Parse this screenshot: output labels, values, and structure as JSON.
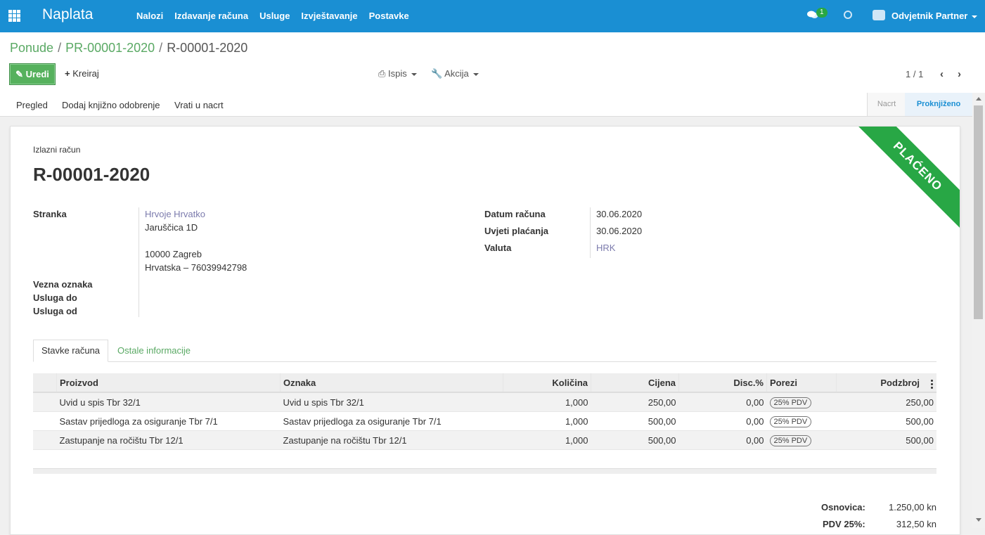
{
  "topbar": {
    "brand": "Naplata",
    "menu": [
      "Nalozi",
      "Izdavanje računa",
      "Usluge",
      "Izvještavanje",
      "Postavke"
    ],
    "chat_badge": "1",
    "user_name": "Odvjetnik Partner",
    "icons": {
      "apps": "apps-grid-icon",
      "chat": "chat-icon",
      "activity": "clock-icon",
      "company": "company-camera-icon"
    },
    "color": "#1a8fd3"
  },
  "breadcrumb": {
    "items": [
      "Ponude",
      "PR-00001-2020"
    ],
    "current": "R-00001-2020"
  },
  "buttons": {
    "edit": "Uredi",
    "create": "Kreiraj",
    "print": "Ispis",
    "action": "Akcija"
  },
  "pager": {
    "value": "1 / 1"
  },
  "statusbar": {
    "actions": [
      "Pregled",
      "Dodaj knjižno odobrenje",
      "Vrati u nacrt"
    ],
    "stages": [
      "Nacrt",
      "Proknjiženo"
    ],
    "active_stage": "Proknjiženo"
  },
  "ribbon": {
    "label": "PLAĆENO",
    "color": "#28a745"
  },
  "document": {
    "type": "Izlazni račun",
    "name": "R-00001-2020"
  },
  "left_fields": {
    "partner_label": "Stranka",
    "partner_name": "Hrvoje Hrvatko",
    "address_line1": "Jaruščica 1D",
    "address_line2": "10000 Zagreb",
    "address_line3": "Hrvatska – 76039942798",
    "reference_label": "Vezna oznaka",
    "service_to_label": "Usluga do",
    "service_from_label": "Usluga od"
  },
  "right_fields": {
    "invoice_date_label": "Datum računa",
    "invoice_date": "30.06.2020",
    "payment_terms_label": "Uvjeti plaćanja",
    "payment_terms": "30.06.2020",
    "currency_label": "Valuta",
    "currency": "HRK"
  },
  "tabs": [
    "Stavke računa",
    "Ostale informacije"
  ],
  "lines": {
    "columns": [
      "Proizvod",
      "Oznaka",
      "Količina",
      "Cijena",
      "Disc.%",
      "Porezi",
      "Podzbroj"
    ],
    "rows": [
      {
        "product": "Uvid u spis Tbr 32/1",
        "label": "Uvid u spis Tbr 32/1",
        "qty": "1,000",
        "price": "250,00",
        "disc": "0,00",
        "tax": "25% PDV",
        "subtotal": "250,00"
      },
      {
        "product": "Sastav prijedloga za osiguranje Tbr 7/1",
        "label": "Sastav prijedloga za osiguranje Tbr 7/1",
        "qty": "1,000",
        "price": "500,00",
        "disc": "0,00",
        "tax": "25% PDV",
        "subtotal": "500,00"
      },
      {
        "product": "Zastupanje na ročištu Tbr 12/1",
        "label": "Zastupanje na ročištu Tbr 12/1",
        "qty": "1,000",
        "price": "500,00",
        "disc": "0,00",
        "tax": "25% PDV",
        "subtotal": "500,00"
      }
    ]
  },
  "totals": {
    "base_label": "Osnovica:",
    "base_value": "1.250,00 kn",
    "tax_label": "PDV 25%:",
    "tax_value": "312,50 kn"
  }
}
